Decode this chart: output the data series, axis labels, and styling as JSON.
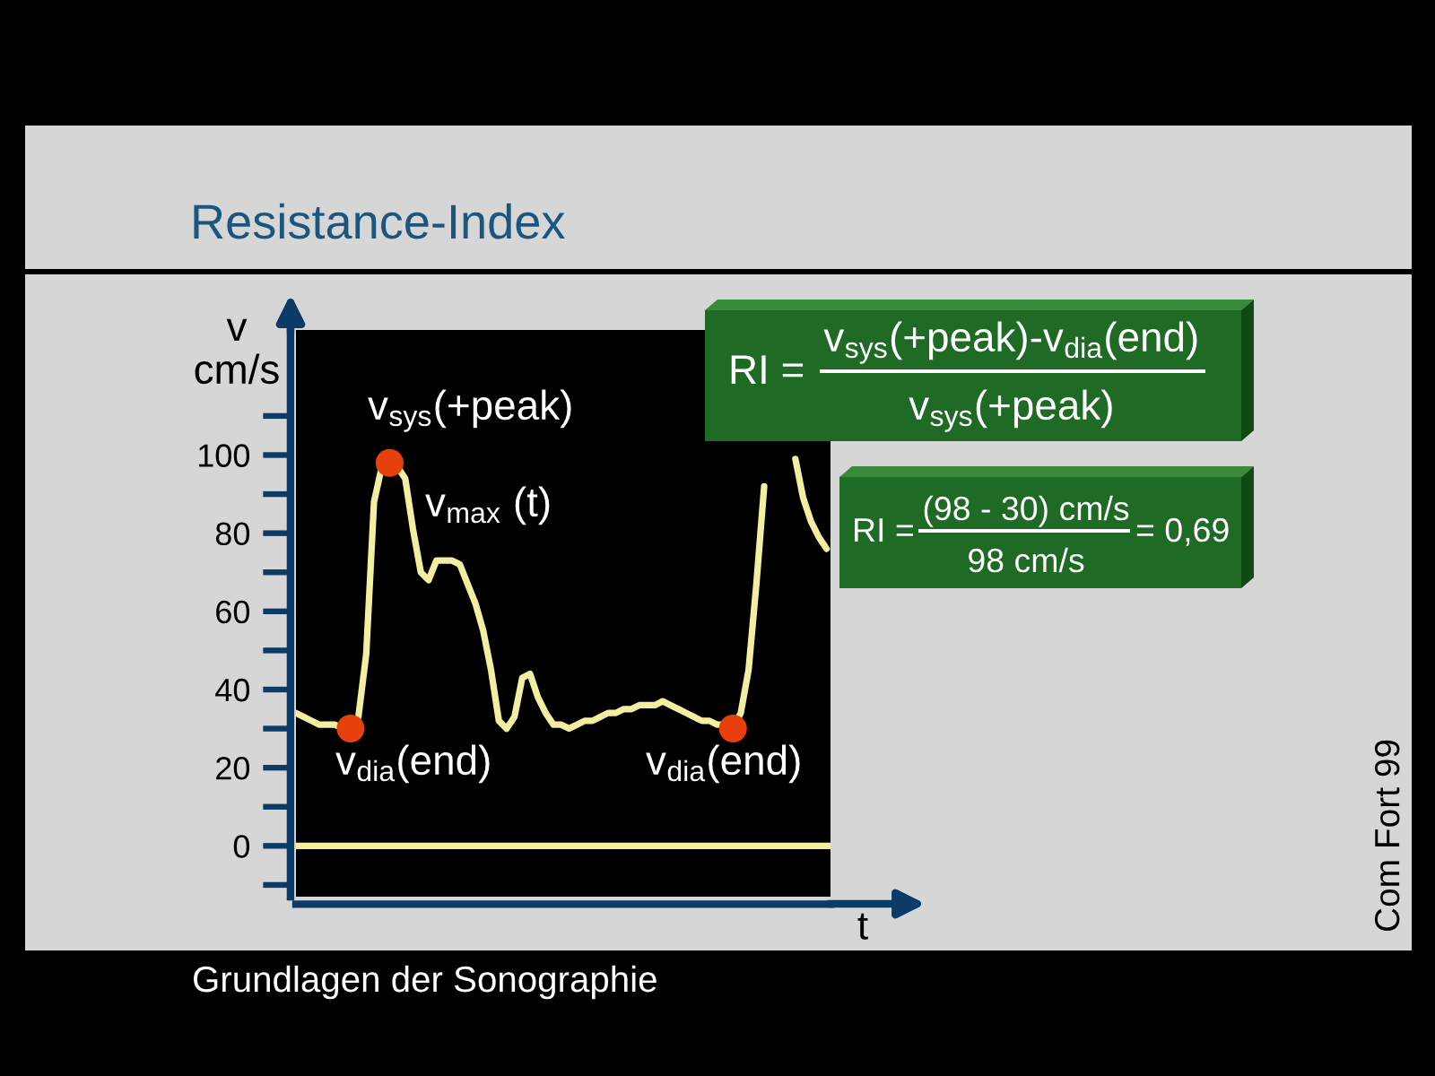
{
  "chart_data": {
    "type": "line",
    "title": "Resistance-Index",
    "xlabel": "t",
    "ylabel": "v\ncm/s",
    "categories": [
      null,
      null,
      null,
      null,
      null,
      null,
      null,
      null,
      null,
      null,
      null,
      null,
      null,
      null,
      null,
      null,
      null,
      null,
      null,
      null,
      null,
      null,
      null,
      null,
      null,
      null,
      null,
      null,
      null,
      null,
      null,
      null,
      null,
      null,
      null,
      null,
      null,
      null,
      null,
      null,
      null,
      null,
      null,
      null,
      null,
      null,
      null,
      null,
      null,
      null,
      null,
      null,
      null,
      null,
      null,
      null,
      null,
      null,
      null,
      null,
      null,
      null,
      null,
      null,
      null,
      null,
      null,
      null,
      null
    ],
    "series": [
      {
        "color": "#f3eea0",
        "values": [
          34,
          33,
          32,
          31,
          31,
          31,
          30,
          30,
          33,
          49,
          88,
          97,
          98,
          97,
          94,
          81,
          70,
          68,
          73,
          73,
          73,
          72,
          67,
          62,
          55,
          45,
          32,
          30,
          33,
          43,
          44,
          38,
          34,
          31,
          31,
          30,
          31,
          32,
          32,
          33,
          34,
          34,
          35,
          35,
          36,
          36,
          36,
          37,
          36,
          35,
          34,
          33,
          32,
          32,
          31,
          31,
          30,
          34,
          45,
          67,
          92,
          null,
          null,
          null,
          null,
          null,
          null,
          null,
          null
        ]
      },
      {
        "color": "#f3eea0",
        "values": [
          null,
          null,
          null,
          null,
          null,
          null,
          null,
          null,
          null,
          null,
          null,
          null,
          null,
          null,
          null,
          null,
          null,
          null,
          null,
          null,
          null,
          null,
          null,
          null,
          null,
          null,
          null,
          null,
          null,
          null,
          null,
          null,
          null,
          null,
          null,
          null,
          null,
          null,
          null,
          null,
          null,
          null,
          null,
          null,
          null,
          null,
          null,
          null,
          null,
          null,
          null,
          null,
          null,
          null,
          null,
          null,
          null,
          null,
          null,
          null,
          null,
          null,
          null,
          null,
          99,
          89,
          83,
          79,
          76
        ]
      },
      {
        "type": "scatter",
        "color": "#e8400c",
        "marker": "circle",
        "values": [
          null,
          null,
          null,
          null,
          null,
          null,
          null,
          30,
          null,
          null,
          null,
          null,
          98,
          null,
          null,
          null,
          null,
          null,
          null,
          null,
          null,
          null,
          null,
          null,
          null,
          null,
          null,
          null,
          null,
          null,
          null,
          null,
          null,
          null,
          null,
          null,
          null,
          null,
          null,
          null,
          null,
          null,
          null,
          null,
          null,
          null,
          null,
          null,
          null,
          null,
          null,
          null,
          null,
          null,
          null,
          null,
          30,
          null,
          null,
          null,
          null,
          null,
          null,
          null,
          null,
          null,
          null,
          null,
          null
        ]
      }
    ],
    "ylim": [
      -13,
      132
    ],
    "yticks": [
      {
        "value": -10,
        "label": null
      },
      0,
      {
        "value": 10,
        "label": null
      },
      20,
      {
        "value": 30,
        "label": null
      },
      40,
      {
        "value": 50,
        "label": null
      },
      60,
      {
        "value": 70,
        "label": null
      },
      80,
      {
        "value": 90,
        "label": null
      },
      100,
      {
        "value": 110,
        "label": null
      }
    ],
    "ref_lines": [
      {
        "axis": "y",
        "value": 0,
        "color": "#f3eea0"
      }
    ],
    "tick_labels": "y",
    "line_style": "solid",
    "annotations": [
      "v$_{sys}$(+peak)",
      "v$_{max}$ (t)",
      "v$_{dia}$(end)",
      "v$_{dia}$(end)",
      "RI =",
      "v$_{sys}$(+peak)-v$_{dia}$(end)",
      "v$_{sys}$(+peak)",
      "RI =",
      "(98 - 30) cm/s",
      "98 cm/s",
      "= 0,69",
      "Grundlagen der Sonographie",
      "Com Fort 99"
    ]
  }
}
